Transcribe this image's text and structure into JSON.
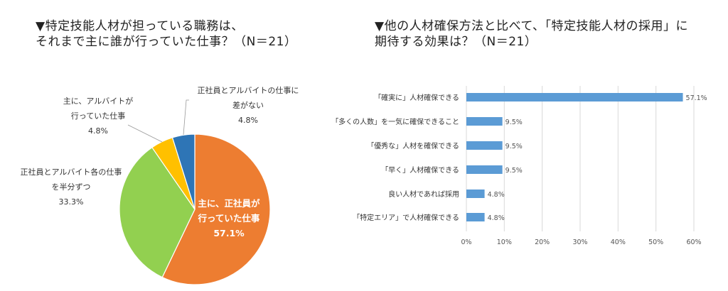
{
  "chart_data": [
    {
      "type": "pie",
      "title_lines": [
        "▼特定技能人材が担っている職務は、",
        "それまで主に誰が行っていた仕事？（N＝21）"
      ],
      "slices": [
        {
          "label_lines": [
            "主に、正社員が",
            "行っていた仕事"
          ],
          "value": 57.1,
          "value_label": "57.1%",
          "color": "#ED7D31"
        },
        {
          "label_lines": [
            "正社員とアルバイト各の仕事",
            "を半分ずつ"
          ],
          "value": 33.3,
          "value_label": "33.3%",
          "color": "#92D050"
        },
        {
          "label_lines": [
            "主に、アルバイトが",
            "行っていた仕事"
          ],
          "value": 4.8,
          "value_label": "4.8%",
          "color": "#FFC000"
        },
        {
          "label_lines": [
            "正社員とアルバイトの仕事に",
            "差がない"
          ],
          "value": 4.8,
          "value_label": "4.8%",
          "color": "#2E75B6"
        }
      ]
    },
    {
      "type": "bar",
      "orientation": "horizontal",
      "title_lines": [
        "▼他の人材確保方法と比べて、「特定技能人材の採用」に",
        "期待する効果は？（N＝21）"
      ],
      "categories": [
        "「確実に」人材確保できる",
        "「多くの人数」を一気に確保できること",
        "「優秀な」人材を確保できる",
        "「早く」人材確保できる",
        "良い人材であれば採用",
        "「特定エリア」で人材確保できる"
      ],
      "values": [
        57.1,
        9.5,
        9.5,
        9.5,
        4.8,
        4.8
      ],
      "value_labels": [
        "57.1%",
        "9.5%",
        "9.5%",
        "9.5%",
        "4.8%",
        "4.8%"
      ],
      "xlim": [
        0,
        60
      ],
      "xticks": [
        "0%",
        "10%",
        "20%",
        "30%",
        "40%",
        "50%",
        "60%"
      ],
      "grid": true,
      "color": "#5B9BD5"
    }
  ]
}
